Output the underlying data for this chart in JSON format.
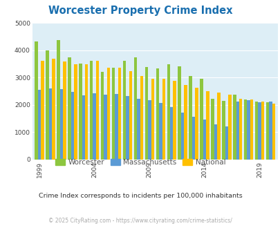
{
  "title": "Worcester Property Crime Index",
  "title_color": "#1a6faf",
  "subtitle": "Crime Index corresponds to incidents per 100,000 inhabitants",
  "subtitle_color": "#333333",
  "footer": "© 2025 CityRating.com - https://www.cityrating.com/crime-statistics/",
  "footer_color": "#aaaaaa",
  "years": [
    1999,
    2000,
    2001,
    2002,
    2003,
    2004,
    2005,
    2006,
    2007,
    2008,
    2009,
    2010,
    2011,
    2012,
    2013,
    2014,
    2015,
    2016,
    2017,
    2018,
    2019,
    2020
  ],
  "worcester": [
    4320,
    3980,
    4380,
    3740,
    3500,
    3620,
    3200,
    3350,
    3620,
    3750,
    3380,
    3340,
    3490,
    3420,
    3060,
    2960,
    2220,
    2140,
    2370,
    2200,
    2110,
    2100
  ],
  "massachusetts": [
    2540,
    2600,
    2580,
    2470,
    2350,
    2420,
    2380,
    2400,
    2330,
    2230,
    2160,
    2080,
    1920,
    1710,
    1560,
    1470,
    1280,
    1220,
    2120,
    2170,
    2090,
    2110
  ],
  "national": [
    3600,
    3680,
    3580,
    3480,
    3480,
    3600,
    3350,
    3350,
    3220,
    3050,
    2960,
    2950,
    2890,
    2730,
    2620,
    2500,
    2460,
    2380,
    2210,
    2200,
    2110,
    2050
  ],
  "worcester_color": "#8dc63f",
  "massachusetts_color": "#5b9bd5",
  "national_color": "#ffc000",
  "bg_color": "#ddeef6",
  "fig_bg": "#ffffff",
  "ylim": [
    0,
    5000
  ],
  "yticks": [
    0,
    1000,
    2000,
    3000,
    4000,
    5000
  ],
  "xtick_labels": [
    "1999",
    "2004",
    "2009",
    "2014",
    "2019"
  ],
  "xtick_years": [
    1999,
    2004,
    2009,
    2014,
    2019
  ],
  "bar_width": 0.28,
  "legend_labels": [
    "Worcester",
    "Massachusetts",
    "National"
  ],
  "legend_text_color": "#555555"
}
